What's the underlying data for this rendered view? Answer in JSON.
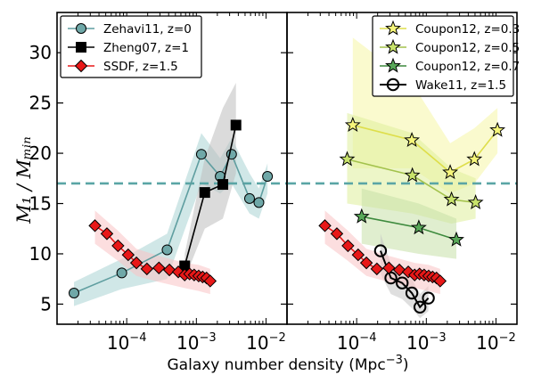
{
  "chart_data": {
    "type": "line",
    "xlabel": "Galaxy number density (Mpc",
    "xlabel_sup": "−3",
    "xlabel_end": ")",
    "ylabel": "M₁ / Mₘᵢₙ",
    "x_scale": "log",
    "xlim": [
      1e-05,
      0.02
    ],
    "ylim": [
      3,
      34
    ],
    "y_ticks": [
      5,
      10,
      15,
      20,
      25,
      30
    ],
    "x_ticks": [
      {
        "value": 0.0001,
        "base": "10",
        "exp": "−4"
      },
      {
        "value": 0.001,
        "base": "10",
        "exp": "−3"
      },
      {
        "value": 0.01,
        "base": "10",
        "exp": "−2"
      }
    ],
    "reference_line": {
      "y": 17,
      "color": "#5aa5a5",
      "style": "dashed"
    },
    "panels": [
      {
        "position": "left",
        "legend_position": "top-left",
        "series": [
          {
            "name": "Zehavi11, z=0",
            "marker": "circle",
            "color": "#5f9ea0",
            "fill": "#6fa8a8",
            "band_color": "#a9d3d3",
            "points": [
              {
                "x": 1.75e-05,
                "y": 6.1
              },
              {
                "x": 8.5e-05,
                "y": 8.1
              },
              {
                "x": 0.00038,
                "y": 10.4
              },
              {
                "x": 0.00118,
                "y": 19.9
              },
              {
                "x": 0.0022,
                "y": 17.7
              },
              {
                "x": 0.0032,
                "y": 19.9
              },
              {
                "x": 0.0058,
                "y": 15.5
              },
              {
                "x": 0.0079,
                "y": 15.1
              },
              {
                "x": 0.0105,
                "y": 17.7
              }
            ],
            "band": [
              {
                "x": 1.75e-05,
                "lo": 4.8,
                "hi": 7.2
              },
              {
                "x": 8.5e-05,
                "lo": 6.5,
                "hi": 9.5
              },
              {
                "x": 0.00038,
                "lo": 7.5,
                "hi": 12.0
              },
              {
                "x": 0.00118,
                "lo": 17.0,
                "hi": 22.0
              },
              {
                "x": 0.0022,
                "lo": 16.0,
                "hi": 19.5
              },
              {
                "x": 0.0032,
                "lo": 17.0,
                "hi": 21.5
              },
              {
                "x": 0.0058,
                "lo": 14.0,
                "hi": 18.0
              },
              {
                "x": 0.0079,
                "lo": 13.5,
                "hi": 16.5
              },
              {
                "x": 0.0105,
                "lo": 16.0,
                "hi": 19.0
              }
            ]
          },
          {
            "name": "Zheng07, z=1",
            "marker": "square",
            "color": "#000000",
            "fill": "#000000",
            "band_color": "#bdbdbd",
            "points": [
              {
                "x": 0.00068,
                "y": 8.8
              },
              {
                "x": 0.00132,
                "y": 16.1
              },
              {
                "x": 0.0024,
                "y": 16.9
              },
              {
                "x": 0.0037,
                "y": 22.8
              }
            ],
            "band": [
              {
                "x": 0.00068,
                "lo": 7.5,
                "hi": 10.0
              },
              {
                "x": 0.00132,
                "lo": 12.5,
                "hi": 19.5
              },
              {
                "x": 0.0024,
                "lo": 13.5,
                "hi": 24.5
              },
              {
                "x": 0.0037,
                "lo": 18.0,
                "hi": 27.0
              }
            ]
          },
          {
            "name": "SSDF, z=1.5",
            "marker": "diamond",
            "color": "#e81818",
            "fill": "#e81818",
            "band_color": "#f9c3c5",
            "points": [
              {
                "x": 3.5e-05,
                "y": 12.8
              },
              {
                "x": 5.2e-05,
                "y": 12.0
              },
              {
                "x": 7.5e-05,
                "y": 10.8
              },
              {
                "x": 0.000105,
                "y": 9.9
              },
              {
                "x": 0.000138,
                "y": 9.1
              },
              {
                "x": 0.000195,
                "y": 8.5
              },
              {
                "x": 0.00029,
                "y": 8.6
              },
              {
                "x": 0.00041,
                "y": 8.4
              },
              {
                "x": 0.00055,
                "y": 8.2
              },
              {
                "x": 0.00068,
                "y": 7.9
              },
              {
                "x": 0.0008,
                "y": 8.0
              },
              {
                "x": 0.00093,
                "y": 7.9
              },
              {
                "x": 0.00108,
                "y": 7.8
              },
              {
                "x": 0.00123,
                "y": 7.7
              },
              {
                "x": 0.0014,
                "y": 7.6
              },
              {
                "x": 0.00158,
                "y": 7.3
              }
            ],
            "band": [
              {
                "x": 3.5e-05,
                "lo": 11.0,
                "hi": 14.3
              },
              {
                "x": 7.5e-05,
                "lo": 9.3,
                "hi": 12.3
              },
              {
                "x": 0.000138,
                "lo": 7.8,
                "hi": 10.5
              },
              {
                "x": 0.00029,
                "lo": 7.2,
                "hi": 9.8
              },
              {
                "x": 0.00068,
                "lo": 6.6,
                "hi": 9.1
              },
              {
                "x": 0.00108,
                "lo": 6.3,
                "hi": 8.9
              },
              {
                "x": 0.00158,
                "lo": 6.0,
                "hi": 8.5
              }
            ]
          }
        ]
      },
      {
        "position": "right",
        "legend_position": "top-right",
        "series": [
          {
            "name": "Coupon12, z=0.3",
            "marker": "star",
            "color": "#dede4a",
            "fill": "#f6f67a",
            "band_color": "#f5f5a6",
            "points": [
              {
                "x": 8.8e-05,
                "y": 22.8
              },
              {
                "x": 0.00062,
                "y": 21.3
              },
              {
                "x": 0.0022,
                "y": 18.1
              },
              {
                "x": 0.0049,
                "y": 19.4
              },
              {
                "x": 0.0105,
                "y": 22.3
              }
            ],
            "band": [
              {
                "x": 8.8e-05,
                "lo": 18.5,
                "hi": 31.5
              },
              {
                "x": 0.00062,
                "lo": 18.5,
                "hi": 27.0
              },
              {
                "x": 0.0022,
                "lo": 16.0,
                "hi": 21.0
              },
              {
                "x": 0.0049,
                "lo": 17.0,
                "hi": 22.5
              },
              {
                "x": 0.0105,
                "lo": 20.0,
                "hi": 24.5
              }
            ]
          },
          {
            "name": "Coupon12, z=0.5",
            "marker": "star",
            "color": "#a3c24c",
            "fill": "#c8e36b",
            "band_color": "#dfef9a",
            "points": [
              {
                "x": 7.3e-05,
                "y": 19.4
              },
              {
                "x": 0.00063,
                "y": 17.8
              },
              {
                "x": 0.0023,
                "y": 15.4
              },
              {
                "x": 0.0051,
                "y": 15.1
              }
            ],
            "band": [
              {
                "x": 7.3e-05,
                "lo": 15.0,
                "hi": 24.0
              },
              {
                "x": 0.00063,
                "lo": 14.0,
                "hi": 22.0
              },
              {
                "x": 0.0023,
                "lo": 13.0,
                "hi": 18.5
              },
              {
                "x": 0.0051,
                "lo": 13.5,
                "hi": 17.5
              }
            ]
          },
          {
            "name": "Coupon12, z=0.7",
            "marker": "star",
            "color": "#3d8a3d",
            "fill": "#58a858",
            "band_color": "#c6e0a8",
            "points": [
              {
                "x": 0.000118,
                "y": 13.7
              },
              {
                "x": 0.00078,
                "y": 12.6
              },
              {
                "x": 0.0027,
                "y": 11.4
              }
            ],
            "band": [
              {
                "x": 0.000118,
                "lo": 11.0,
                "hi": 16.5
              },
              {
                "x": 0.00078,
                "lo": 10.0,
                "hi": 15.0
              },
              {
                "x": 0.0027,
                "lo": 9.5,
                "hi": 13.5
              }
            ]
          },
          {
            "name": "Wake11, z=1.5",
            "marker": "open-circle",
            "color": "#000000",
            "fill": "none",
            "band_color": "#c4c4c4",
            "points": [
              {
                "x": 0.00022,
                "y": 10.3
              },
              {
                "x": 0.00031,
                "y": 7.6
              },
              {
                "x": 0.00045,
                "y": 7.1
              },
              {
                "x": 0.00062,
                "y": 6.1
              },
              {
                "x": 0.00081,
                "y": 4.7
              },
              {
                "x": 0.00107,
                "y": 5.6
              }
            ],
            "band": [
              {
                "x": 0.00022,
                "lo": 8.0,
                "hi": 12.0
              },
              {
                "x": 0.00031,
                "lo": 6.0,
                "hi": 9.0
              },
              {
                "x": 0.00045,
                "lo": 5.5,
                "hi": 8.5
              },
              {
                "x": 0.00062,
                "lo": 4.6,
                "hi": 7.5
              },
              {
                "x": 0.00081,
                "lo": 3.6,
                "hi": 6.0
              },
              {
                "x": 0.00107,
                "lo": 4.3,
                "hi": 6.8
              }
            ]
          },
          {
            "name": "",
            "legend": false,
            "marker": "diamond",
            "color": "#e81818",
            "fill": "#e81818",
            "band_color": "#f9c3c5",
            "points": [
              {
                "x": 3.5e-05,
                "y": 12.8
              },
              {
                "x": 5.2e-05,
                "y": 12.0
              },
              {
                "x": 7.5e-05,
                "y": 10.8
              },
              {
                "x": 0.000105,
                "y": 9.9
              },
              {
                "x": 0.000138,
                "y": 9.1
              },
              {
                "x": 0.000195,
                "y": 8.5
              },
              {
                "x": 0.00029,
                "y": 8.6
              },
              {
                "x": 0.00041,
                "y": 8.4
              },
              {
                "x": 0.00055,
                "y": 8.2
              },
              {
                "x": 0.00068,
                "y": 7.9
              },
              {
                "x": 0.0008,
                "y": 8.0
              },
              {
                "x": 0.00093,
                "y": 7.9
              },
              {
                "x": 0.00108,
                "y": 7.8
              },
              {
                "x": 0.00123,
                "y": 7.7
              },
              {
                "x": 0.0014,
                "y": 7.6
              },
              {
                "x": 0.00158,
                "y": 7.3
              }
            ],
            "band": [
              {
                "x": 3.5e-05,
                "lo": 11.0,
                "hi": 14.3
              },
              {
                "x": 7.5e-05,
                "lo": 9.3,
                "hi": 12.3
              },
              {
                "x": 0.000138,
                "lo": 7.8,
                "hi": 10.5
              },
              {
                "x": 0.00029,
                "lo": 7.2,
                "hi": 9.8
              },
              {
                "x": 0.00068,
                "lo": 6.6,
                "hi": 9.1
              },
              {
                "x": 0.00108,
                "lo": 6.3,
                "hi": 8.9
              },
              {
                "x": 0.00158,
                "lo": 6.0,
                "hi": 8.5
              }
            ]
          }
        ]
      }
    ]
  }
}
